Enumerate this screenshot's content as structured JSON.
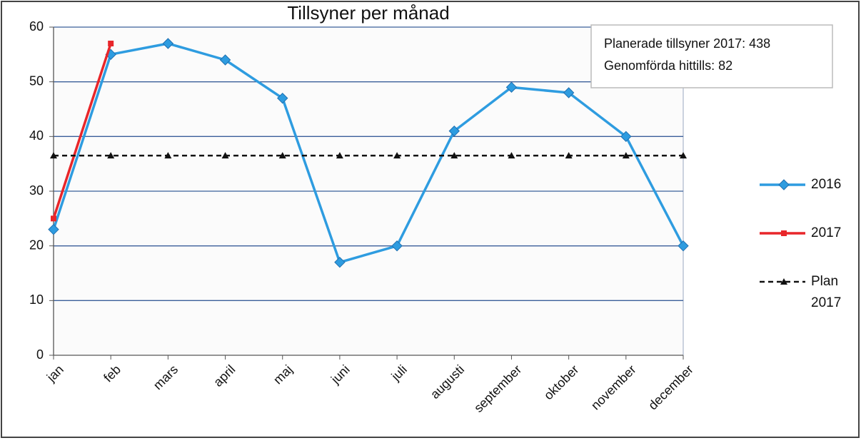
{
  "chart_data": {
    "type": "line",
    "title": "Tillsyner per månad",
    "categories": [
      "jan",
      "feb",
      "mars",
      "april",
      "maj",
      "juni",
      "juli",
      "augusti",
      "september",
      "oktober",
      "november",
      "december"
    ],
    "ylim": [
      0,
      60
    ],
    "yticks": [
      0,
      10,
      20,
      30,
      40,
      50,
      60
    ],
    "grid": "horizontal",
    "legend_position": "right",
    "series": [
      {
        "name": "2016",
        "color": "#2e9ce0",
        "marker": "diamond",
        "dash": "solid",
        "values": [
          23,
          55,
          57,
          54,
          47,
          17,
          20,
          41,
          49,
          48,
          40,
          20
        ]
      },
      {
        "name": "2017",
        "color": "#e8262a",
        "marker": "square",
        "dash": "solid",
        "values": [
          25,
          57,
          null,
          null,
          null,
          null,
          null,
          null,
          null,
          null,
          null,
          null
        ]
      },
      {
        "name": "Plan 2017",
        "color": "#111111",
        "marker": "triangle",
        "dash": "dashed",
        "values": [
          36.5,
          36.5,
          36.5,
          36.5,
          36.5,
          36.5,
          36.5,
          36.5,
          36.5,
          36.5,
          36.5,
          36.5
        ]
      }
    ],
    "annotations": [
      "Planerade tillsyner 2017: 438",
      "Genomförda hittills: 82"
    ]
  }
}
